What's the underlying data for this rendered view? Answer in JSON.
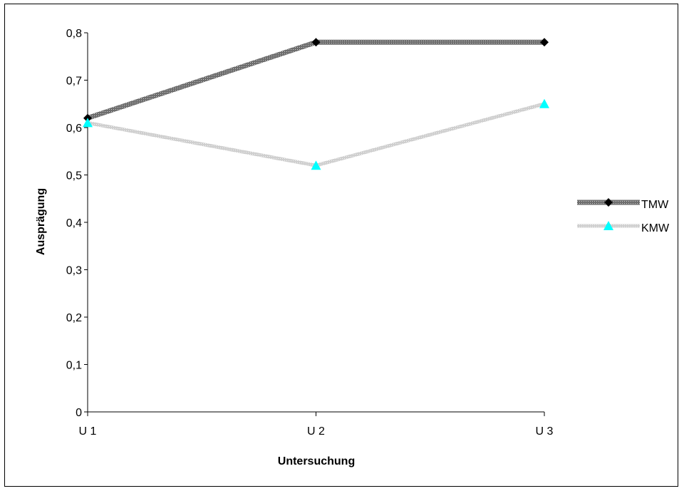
{
  "chart_data": {
    "type": "line",
    "categories": [
      "U 1",
      "U 2",
      "U 3"
    ],
    "series": [
      {
        "name": "TMW",
        "values": [
          0.62,
          0.78,
          0.78
        ],
        "color": "#000000",
        "line_color": "#8c8c8c",
        "marker": "diamond"
      },
      {
        "name": "KMW",
        "values": [
          0.61,
          0.52,
          0.65
        ],
        "color": "#00ffff",
        "line_color": "#cfcfcf",
        "marker": "triangle"
      }
    ],
    "title": "",
    "xlabel": "Untersuchung",
    "ylabel": "Ausprägung",
    "ylim": [
      0,
      0.8
    ],
    "yticks": [
      "0",
      "0,1",
      "0,2",
      "0,3",
      "0,4",
      "0,5",
      "0,6",
      "0,7",
      "0,8"
    ],
    "grid": false,
    "legend_position": "right"
  }
}
